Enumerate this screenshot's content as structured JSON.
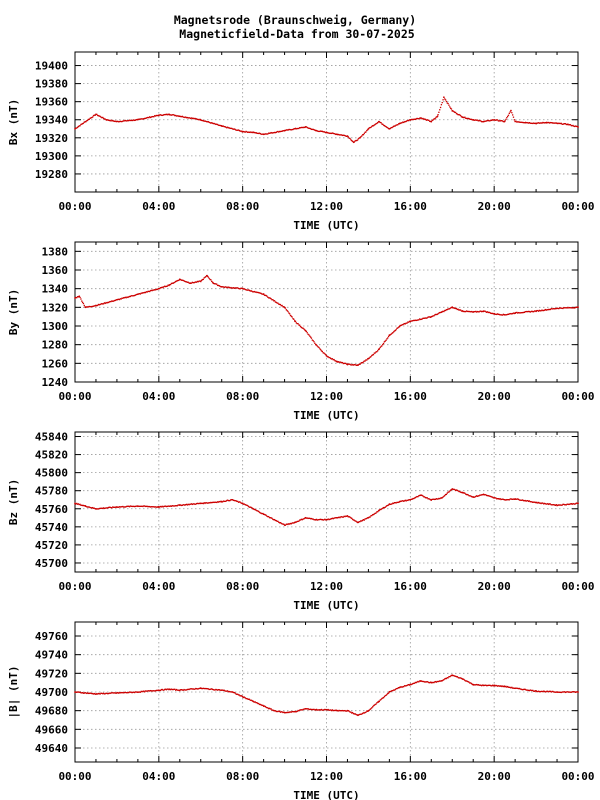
{
  "title_line1": "Magnetsrode (Braunschweig, Germany)",
  "title_line2": "Magneticfield-Data from 30-07-2025",
  "colors": {
    "series": "#cc0000",
    "grid": "#9a9a9a",
    "axis": "#000000",
    "background": "#ffffff"
  },
  "chart_data": [
    {
      "type": "line",
      "ylabel": "Bx (nT)",
      "xlabel": "TIME (UTC)",
      "xlim": [
        0,
        24
      ],
      "x_tick_labels": [
        "00:00",
        "04:00",
        "08:00",
        "12:00",
        "16:00",
        "20:00",
        "00:00"
      ],
      "ylim": [
        19260,
        19415
      ],
      "y_ticks": [
        19280,
        19300,
        19320,
        19340,
        19360,
        19380,
        19400
      ],
      "grid": true,
      "series": [
        {
          "x": [
            0,
            0.5,
            1,
            1.5,
            2,
            3,
            4,
            4.5,
            5,
            6,
            7,
            8,
            8.5,
            9,
            10,
            10.5,
            11,
            11.5,
            12,
            12.5,
            13,
            13.3,
            13.6,
            14,
            14.5,
            15,
            15.5,
            16,
            16.5,
            17,
            17.3,
            17.6,
            18,
            18.5,
            19,
            19.5,
            20,
            20.5,
            20.8,
            21,
            21.5,
            22,
            22.5,
            23,
            23.5,
            24
          ],
          "y": [
            19330,
            19338,
            19346,
            19340,
            19338,
            19340,
            19345,
            19346,
            19344,
            19340,
            19333,
            19327,
            19326,
            19324,
            19328,
            19330,
            19332,
            19328,
            19326,
            19324,
            19322,
            19315,
            19320,
            19330,
            19338,
            19330,
            19336,
            19340,
            19342,
            19338,
            19344,
            19365,
            19350,
            19343,
            19340,
            19338,
            19340,
            19338,
            19350,
            19338,
            19337,
            19336,
            19337,
            19336,
            19335,
            19332
          ]
        }
      ]
    },
    {
      "type": "line",
      "ylabel": "By (nT)",
      "xlabel": "TIME (UTC)",
      "xlim": [
        0,
        24
      ],
      "x_tick_labels": [
        "00:00",
        "04:00",
        "08:00",
        "12:00",
        "16:00",
        "20:00",
        "00:00"
      ],
      "ylim": [
        1240,
        1390
      ],
      "y_ticks": [
        1240,
        1260,
        1280,
        1300,
        1320,
        1340,
        1360,
        1380
      ],
      "grid": true,
      "series": [
        {
          "x": [
            0,
            0.2,
            0.5,
            1,
            2,
            3,
            4,
            4.5,
            5,
            5.5,
            6,
            6.3,
            6.6,
            7,
            8,
            9,
            10,
            10.5,
            11,
            11.5,
            12,
            12.5,
            13,
            13.5,
            14,
            14.5,
            15,
            15.5,
            16,
            17,
            17.5,
            18,
            18.5,
            19,
            19.5,
            20,
            20.5,
            21,
            22,
            23,
            24
          ],
          "y": [
            1330,
            1332,
            1320,
            1322,
            1328,
            1334,
            1340,
            1344,
            1350,
            1346,
            1348,
            1354,
            1346,
            1342,
            1340,
            1334,
            1320,
            1305,
            1295,
            1280,
            1268,
            1262,
            1259,
            1258,
            1265,
            1275,
            1290,
            1300,
            1305,
            1310,
            1315,
            1320,
            1316,
            1315,
            1316,
            1313,
            1312,
            1314,
            1316,
            1319,
            1320
          ]
        }
      ]
    },
    {
      "type": "line",
      "ylabel": "Bz (nT)",
      "xlabel": "TIME (UTC)",
      "xlim": [
        0,
        24
      ],
      "x_tick_labels": [
        "00:00",
        "04:00",
        "08:00",
        "12:00",
        "16:00",
        "20:00",
        "00:00"
      ],
      "ylim": [
        45690,
        45845
      ],
      "y_ticks": [
        45700,
        45720,
        45740,
        45760,
        45780,
        45800,
        45820,
        45840
      ],
      "grid": true,
      "series": [
        {
          "x": [
            0,
            0.5,
            1,
            2,
            3,
            4,
            5,
            6,
            7,
            7.5,
            8,
            8.5,
            9,
            9.5,
            10,
            10.5,
            11,
            11.5,
            12,
            12.5,
            13,
            13.5,
            14,
            14.5,
            15,
            15.5,
            16,
            16.5,
            17,
            17.5,
            18,
            18.5,
            19,
            19.5,
            20,
            20.5,
            21,
            22,
            23,
            24
          ],
          "y": [
            45766,
            45763,
            45760,
            45762,
            45763,
            45762,
            45764,
            45766,
            45768,
            45770,
            45766,
            45760,
            45754,
            45748,
            45742,
            45745,
            45750,
            45748,
            45748,
            45750,
            45752,
            45745,
            45750,
            45758,
            45765,
            45768,
            45770,
            45775,
            45770,
            45772,
            45782,
            45778,
            45773,
            45776,
            45772,
            45770,
            45771,
            45767,
            45764,
            45766
          ]
        }
      ]
    },
    {
      "type": "line",
      "ylabel": "|B| (nT)",
      "xlabel": "TIME (UTC)",
      "xlim": [
        0,
        24
      ],
      "x_tick_labels": [
        "00:00",
        "04:00",
        "08:00",
        "12:00",
        "16:00",
        "20:00",
        "00:00"
      ],
      "ylim": [
        49625,
        49775
      ],
      "y_ticks": [
        49640,
        49660,
        49680,
        49700,
        49720,
        49740,
        49760
      ],
      "grid": true,
      "series": [
        {
          "x": [
            0,
            1,
            2,
            3,
            4,
            4.5,
            5,
            6,
            7,
            7.5,
            8,
            8.5,
            9,
            9.5,
            10,
            10.5,
            11,
            11.5,
            12,
            12.5,
            13,
            13.5,
            14,
            14.5,
            15,
            15.5,
            16,
            16.5,
            17,
            17.5,
            18,
            18.5,
            19,
            19.5,
            20,
            20.5,
            21,
            22,
            23,
            24
          ],
          "y": [
            49700,
            49698,
            49699,
            49700,
            49702,
            49703,
            49702,
            49704,
            49702,
            49700,
            49695,
            49690,
            49685,
            49680,
            49678,
            49679,
            49682,
            49681,
            49681,
            49680,
            49680,
            49675,
            49680,
            49690,
            49700,
            49705,
            49708,
            49712,
            49710,
            49712,
            49718,
            49714,
            49708,
            49707,
            49707,
            49706,
            49704,
            49701,
            49700,
            49700
          ]
        }
      ]
    }
  ]
}
